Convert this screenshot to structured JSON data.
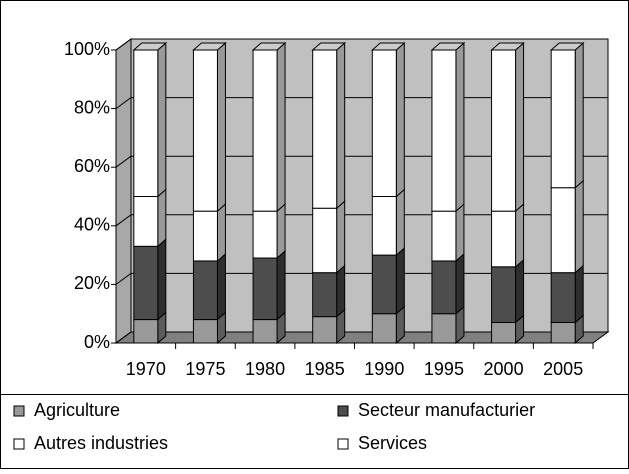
{
  "chart_data": {
    "type": "stacked-bar-3d",
    "categories": [
      "1970",
      "1975",
      "1980",
      "1985",
      "1990",
      "1995",
      "2000",
      "2005"
    ],
    "series": [
      {
        "name": "Agriculture",
        "color": "#999999",
        "values": [
          8,
          8,
          8,
          9,
          10,
          10,
          7,
          7
        ]
      },
      {
        "name": "Secteur manufacturier",
        "color": "#4d4d4d",
        "values": [
          25,
          20,
          21,
          15,
          20,
          18,
          19,
          17
        ]
      },
      {
        "name": "Autres industries",
        "color": "#ffffff",
        "values": [
          17,
          17,
          16,
          22,
          20,
          17,
          19,
          29
        ]
      },
      {
        "name": "Services",
        "color": "#ffffff",
        "values": [
          50,
          55,
          55,
          54,
          50,
          55,
          55,
          47
        ]
      }
    ],
    "ylim": [
      0,
      100
    ],
    "yticks": [
      {
        "value": 0,
        "label": "0%"
      },
      {
        "value": 20,
        "label": "20%"
      },
      {
        "value": 40,
        "label": "40%"
      },
      {
        "value": 60,
        "label": "60%"
      },
      {
        "value": 80,
        "label": "80%"
      },
      {
        "value": 100,
        "label": "100%"
      }
    ],
    "grid": true
  }
}
